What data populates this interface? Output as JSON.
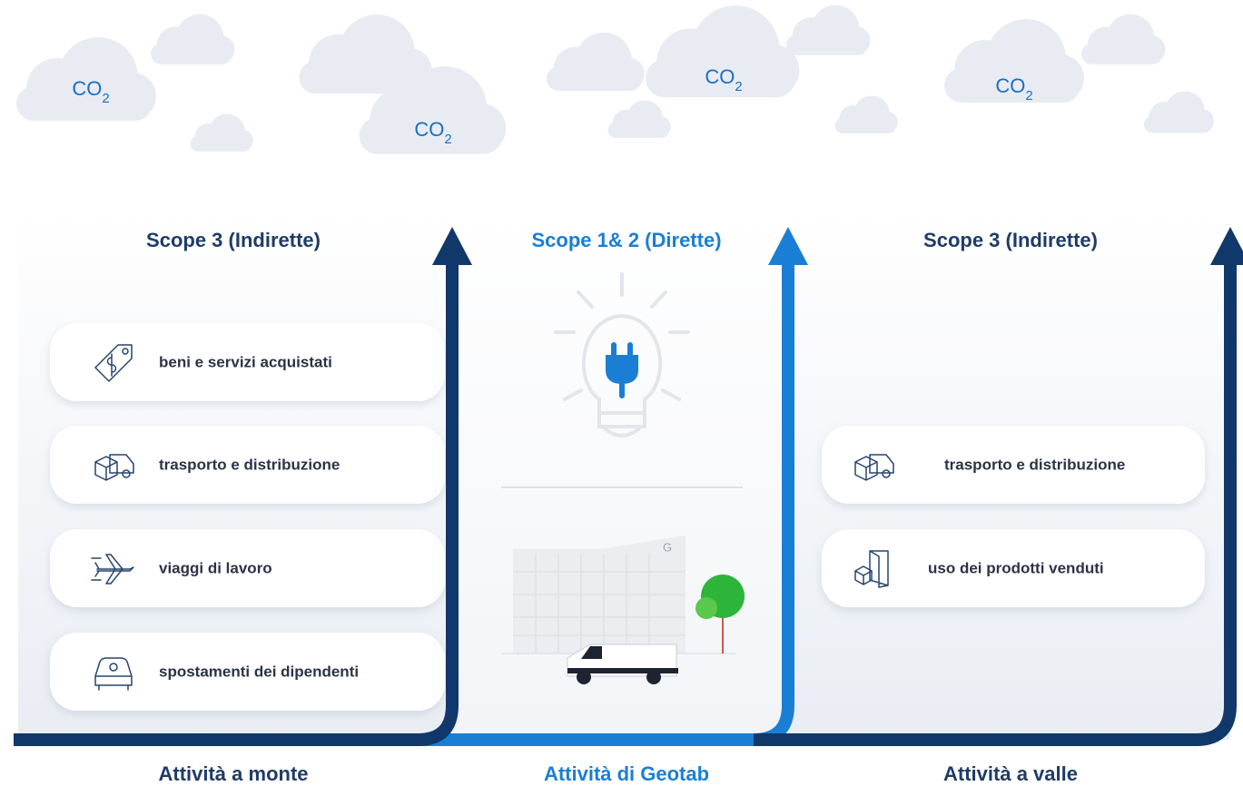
{
  "clouds": [
    {
      "base": "CO",
      "sub": "2"
    },
    {
      "base": "CO",
      "sub": "2"
    },
    {
      "base": "CO",
      "sub": "2"
    },
    {
      "base": "CO",
      "sub": "2"
    }
  ],
  "sections": [
    {
      "title": "Scope 3 (Indirette)",
      "items": [
        "beni e servizi acquistati",
        "trasporto e distribuzione",
        "viaggi di lavoro",
        "spostamenti dei dipendenti"
      ],
      "footer": "Attività a monte"
    },
    {
      "title": "Scope 1& 2 (Dirette)",
      "building_logo": "G",
      "footer": "Attività di Geotab"
    },
    {
      "title": "Scope 3 (Indirette)",
      "items": [
        "trasporto e distribuzione",
        "uso dei prodotti venduti"
      ],
      "footer": "Attività a valle"
    }
  ]
}
